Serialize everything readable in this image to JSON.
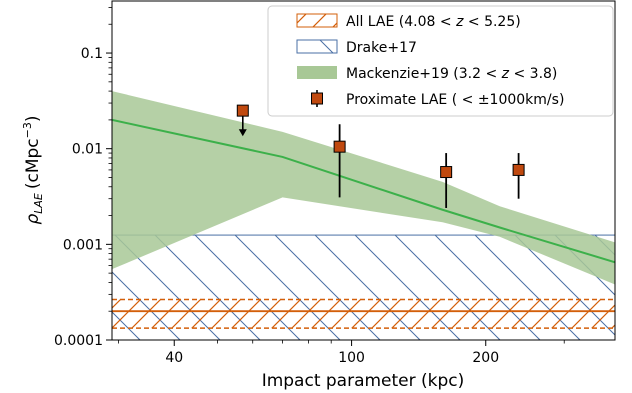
{
  "chart_data": {
    "type": "scatter",
    "xlabel": "Impact parameter (kpc)",
    "ylabel_main": "ρ",
    "ylabel_sub": "LAE",
    "ylabel_unit": "(cMpc",
    "ylabel_exp": "−3",
    "ylabel_close": ")",
    "x_scale": "log",
    "y_scale": "log",
    "xlim": [
      29,
      390
    ],
    "ylim": [
      0.0001,
      0.35
    ],
    "x_ticks": [
      {
        "value": 40,
        "label": "40"
      },
      {
        "value": 100,
        "label": "100"
      },
      {
        "value": 200,
        "label": "200"
      }
    ],
    "x_minor_ticks": [
      30,
      50,
      60,
      70,
      80,
      90,
      300
    ],
    "y_ticks": [
      {
        "value": 0.0001,
        "label": "0.0001"
      },
      {
        "value": 0.001,
        "label": "0.001"
      },
      {
        "value": 0.01,
        "label": "0.01"
      },
      {
        "value": 0.1,
        "label": "0.1"
      }
    ],
    "y_minor_ticks": [
      0.0002,
      0.0003,
      0.0004,
      0.0005,
      0.0006,
      0.0007,
      0.0008,
      0.0009,
      0.002,
      0.003,
      0.004,
      0.005,
      0.006,
      0.007,
      0.008,
      0.009,
      0.02,
      0.03,
      0.04,
      0.05,
      0.06,
      0.07,
      0.08,
      0.09,
      0.2,
      0.3
    ],
    "legend_position": "top-right",
    "series": [
      {
        "name": "All LAE (4.08 < z < 5.25)",
        "legend_parts": [
          "All LAE (4.08 ",
          "<",
          " ",
          "z",
          " ",
          "<",
          " 5.25)"
        ],
        "kind": "hatched-band",
        "color": "#d35f0a",
        "y_low": 0.000133,
        "y_high": 0.000265,
        "y_line": 0.0002
      },
      {
        "name": "Drake+17",
        "legend_parts": [
          "Drake+17"
        ],
        "kind": "hatched-band",
        "color": "#4a6fa5",
        "y_low": 0.0001,
        "y_high": 0.00125
      },
      {
        "name": "Mackenzie+19 (3.2 < z < 3.8)",
        "legend_parts": [
          "Mackenzie+19 (3.2 ",
          "<",
          " ",
          "z",
          " ",
          "<",
          " 3.8)"
        ],
        "kind": "shaded-band-with-line",
        "fill_color": "#a8c896",
        "line_color": "#3cb04a",
        "x": [
          29,
          70,
          160,
          215,
          390
        ],
        "y_upper": [
          0.04,
          0.015,
          0.0045,
          0.0025,
          0.00105
        ],
        "y_line": [
          0.02,
          0.0082,
          0.0023,
          0.0015,
          0.00065
        ],
        "y_lower": [
          0.00055,
          0.0031,
          0.0017,
          0.0012,
          0.00038
        ]
      },
      {
        "name": "Proximate LAE (< ±1000km/s)",
        "legend_parts": [
          "Proximate LAE ( ",
          "<",
          " ±1000km/s)"
        ],
        "kind": "points",
        "marker_color": "#c0490f",
        "x": [
          57,
          94,
          163,
          237
        ],
        "y": [
          0.025,
          0.0105,
          0.0057,
          0.006
        ],
        "yerr_low": [
          null,
          0.0031,
          0.0024,
          0.003
        ],
        "yerr_high": [
          null,
          0.018,
          0.009,
          0.009
        ],
        "upper_limit": [
          true,
          false,
          false,
          false
        ],
        "upper_limit_arrow_to": 0.0135
      }
    ]
  }
}
